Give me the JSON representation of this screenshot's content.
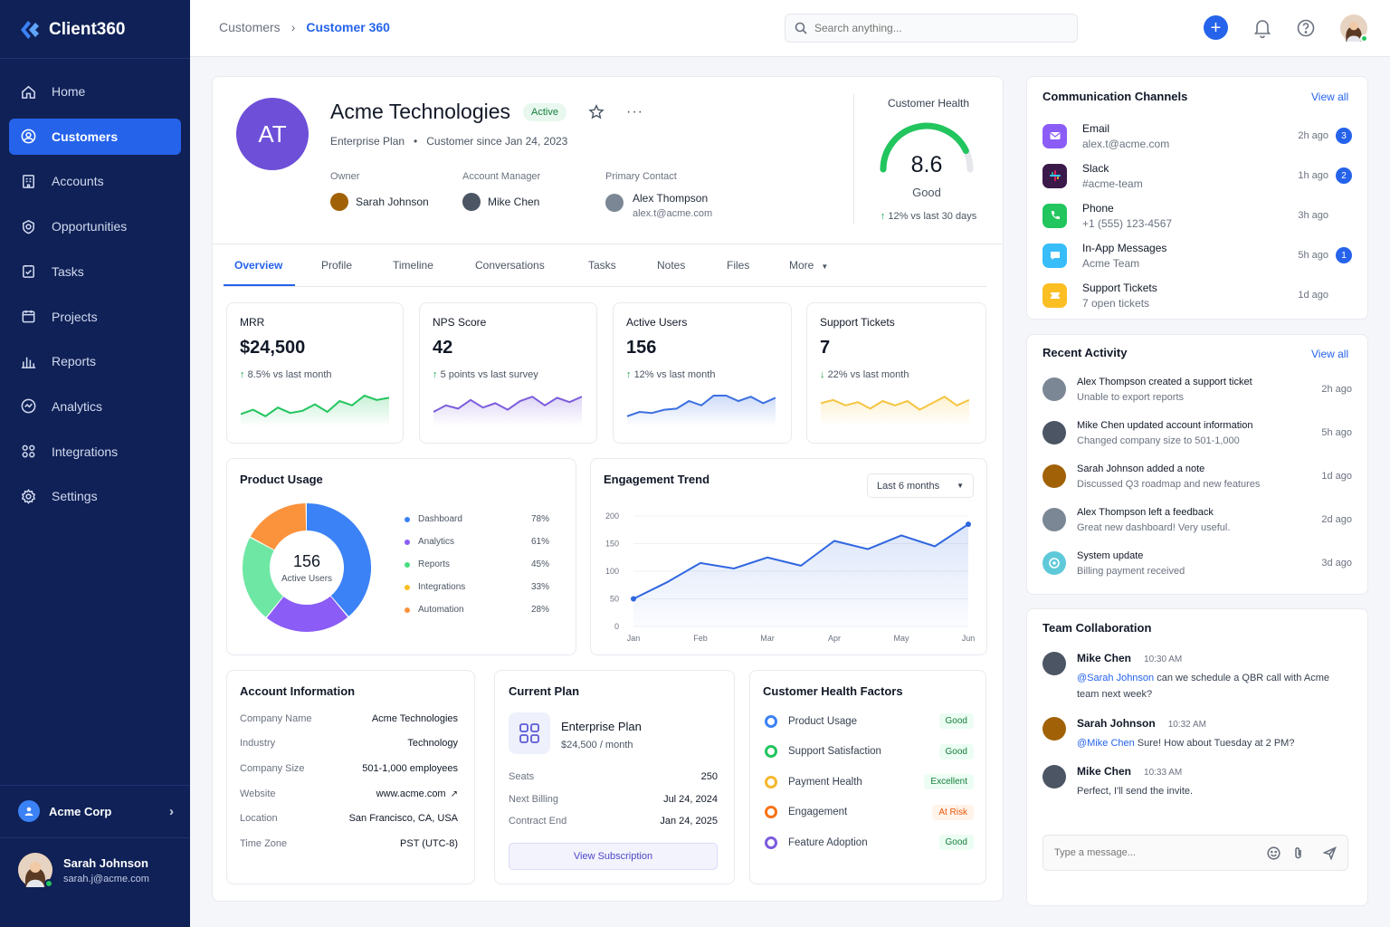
{
  "app": {
    "name": "Client360"
  },
  "sidebar": {
    "items": [
      {
        "label": "Home",
        "icon": "home-icon"
      },
      {
        "label": "Customers",
        "icon": "users-icon",
        "active": true
      },
      {
        "label": "Accounts",
        "icon": "building-icon"
      },
      {
        "label": "Opportunities",
        "icon": "target-icon"
      },
      {
        "label": "Tasks",
        "icon": "checklist-icon"
      },
      {
        "label": "Projects",
        "icon": "calendar-icon"
      },
      {
        "label": "Reports",
        "icon": "bar-chart-icon"
      },
      {
        "label": "Analytics",
        "icon": "analytics-icon"
      },
      {
        "label": "Integrations",
        "icon": "grid-icon"
      },
      {
        "label": "Settings",
        "icon": "gear-icon"
      }
    ],
    "org": "Acme Corp",
    "user": {
      "name": "Sarah Johnson",
      "email": "sarah.j@acme.com"
    }
  },
  "topbar": {
    "breadcrumb": [
      "Customers",
      "Customer 360"
    ],
    "search_placeholder": "Search anything..."
  },
  "customer": {
    "initials": "AT",
    "name": "Acme Technologies",
    "status": "Active",
    "plan": "Enterprise Plan",
    "since": "Customer since Jan 24, 2023",
    "owner_label": "Owner",
    "owner": "Sarah Johnson",
    "manager_label": "Account Manager",
    "manager": "Mike Chen",
    "contact_label": "Primary Contact",
    "contact": "Alex Thompson",
    "contact_email": "alex.t@acme.com"
  },
  "health": {
    "title": "Customer Health",
    "score": "8.6",
    "score_value": 8.6,
    "score_max": 10,
    "label": "Good",
    "change": "12% vs last 30 days"
  },
  "tabs": [
    "Overview",
    "Profile",
    "Timeline",
    "Conversations",
    "Tasks",
    "Notes",
    "Files",
    "More"
  ],
  "metrics": [
    {
      "label": "MRR",
      "value": "$24,500",
      "change": "8.5% vs last month",
      "dir": "up",
      "color": "#22c55e",
      "spark": [
        18,
        22,
        16,
        24,
        19,
        21,
        27,
        20,
        30,
        26,
        35,
        31,
        33
      ]
    },
    {
      "label": "NPS Score",
      "value": "42",
      "change": "5 points vs last survey",
      "dir": "up",
      "color": "#7c5cdb",
      "spark": [
        20,
        26,
        23,
        31,
        24,
        28,
        22,
        30,
        34,
        26,
        33,
        29,
        34
      ]
    },
    {
      "label": "Active Users",
      "value": "156",
      "change": "12% vs last month",
      "dir": "up",
      "color": "#3b6fe0",
      "spark": [
        16,
        20,
        19,
        22,
        23,
        30,
        26,
        35,
        35,
        30,
        34,
        28,
        33
      ]
    },
    {
      "label": "Support Tickets",
      "value": "7",
      "change": "22% vs last month",
      "dir": "down",
      "color": "#f5c542",
      "spark": [
        28,
        31,
        26,
        29,
        23,
        30,
        26,
        30,
        22,
        28,
        34,
        26,
        31
      ]
    }
  ],
  "product_usage": {
    "title": "Product Usage",
    "center_value": "156",
    "center_label": "Active Users",
    "items": [
      {
        "label": "Dashboard",
        "pct": "78%",
        "color": "#3b82f6"
      },
      {
        "label": "Analytics",
        "pct": "61%",
        "color": "#8b5cf6"
      },
      {
        "label": "Reports",
        "pct": "45%",
        "color": "#4ade80"
      },
      {
        "label": "Integrations",
        "pct": "33%",
        "color": "#fbbf24"
      },
      {
        "label": "Automation",
        "pct": "28%",
        "color": "#fb923c"
      }
    ],
    "donut_shares": [
      {
        "color": "#3b82f6",
        "share": 0.39
      },
      {
        "color": "#8b5cf6",
        "share": 0.22
      },
      {
        "color": "#6ee7a4",
        "share": 0.22
      },
      {
        "color": "#fb923c",
        "share": 0.17
      }
    ]
  },
  "engagement": {
    "title": "Engagement Trend",
    "range": "Last 6 months",
    "chart_data": {
      "type": "line",
      "x": [
        0,
        0.5,
        1,
        1.5,
        2,
        2.5,
        3,
        3.5,
        4,
        4.5,
        5
      ],
      "xticks": [
        "Jan",
        "Feb",
        "Mar",
        "Apr",
        "May",
        "Jun"
      ],
      "y": [
        50,
        80,
        115,
        105,
        125,
        110,
        155,
        140,
        165,
        145,
        185
      ],
      "yticks": [
        "200",
        "150",
        "100",
        "50",
        "0"
      ],
      "ylim": [
        0,
        200
      ]
    }
  },
  "account_info": {
    "title": "Account Information",
    "rows": [
      {
        "k": "Company Name",
        "v": "Acme Technologies"
      },
      {
        "k": "Industry",
        "v": "Technology"
      },
      {
        "k": "Company Size",
        "v": "501-1,000 employees"
      },
      {
        "k": "Website",
        "v": "www.acme.com",
        "link": true
      },
      {
        "k": "Location",
        "v": "San Francisco, CA, USA"
      },
      {
        "k": "Time Zone",
        "v": "PST (UTC-8)"
      }
    ]
  },
  "current_plan": {
    "title": "Current Plan",
    "name": "Enterprise Plan",
    "price": "$24,500 / month",
    "rows": [
      {
        "k": "Seats",
        "v": "250"
      },
      {
        "k": "Next Billing",
        "v": "Jul 24, 2024"
      },
      {
        "k": "Contract End",
        "v": "Jan 24, 2025"
      }
    ],
    "button": "View Subscription"
  },
  "health_factors": {
    "title": "Customer Health Factors",
    "rows": [
      {
        "label": "Product Usage",
        "tag": "Good",
        "icolor": "#3b82f6",
        "tcolor": "#15803d",
        "tbg": "#ecfdf3"
      },
      {
        "label": "Support Satisfaction",
        "tag": "Good",
        "icolor": "#22c55e",
        "tcolor": "#15803d",
        "tbg": "#ecfdf3"
      },
      {
        "label": "Payment Health",
        "tag": "Excellent",
        "icolor": "#f5b82e",
        "tcolor": "#15803d",
        "tbg": "#ecfdf3"
      },
      {
        "label": "Engagement",
        "tag": "At Risk",
        "icolor": "#f97316",
        "tcolor": "#ea580c",
        "tbg": "#fff3ea"
      },
      {
        "label": "Feature Adoption",
        "tag": "Good",
        "icolor": "#7c5cdb",
        "tcolor": "#15803d",
        "tbg": "#ecfdf3"
      }
    ]
  },
  "channels": {
    "title": "Communication Channels",
    "view_all": "View all",
    "rows": [
      {
        "t": "Email",
        "s": "alex.t@acme.com",
        "time": "2h ago",
        "count": "3",
        "bg": "#8b5cf6",
        "icon": "mail-icon"
      },
      {
        "t": "Slack",
        "s": "#acme-team",
        "time": "1h ago",
        "count": "2",
        "bg": "#3b1a4a",
        "icon": "slack-icon"
      },
      {
        "t": "Phone",
        "s": "+1 (555) 123-4567",
        "time": "3h ago",
        "count": "",
        "bg": "#22c55e",
        "icon": "phone-icon"
      },
      {
        "t": "In-App Messages",
        "s": "Acme Team",
        "time": "5h ago",
        "count": "1",
        "bg": "#38bdf8",
        "icon": "chat-icon"
      },
      {
        "t": "Support Tickets",
        "s": "7 open tickets",
        "time": "1d ago",
        "count": "",
        "bg": "#fbbf24",
        "icon": "ticket-icon"
      }
    ]
  },
  "activity": {
    "title": "Recent Activity",
    "view_all": "View all",
    "rows": [
      {
        "t": "Alex Thompson created a support ticket",
        "s": "Unable to export reports",
        "time": "2h ago",
        "av": "#7b8794"
      },
      {
        "t": "Mike Chen updated account information",
        "s": "Changed company size to 501-1,000",
        "time": "5h ago",
        "av": "#4b5563"
      },
      {
        "t": "Sarah Johnson added a note",
        "s": "Discussed Q3 roadmap and new features",
        "time": "1d ago",
        "av": "#a16207"
      },
      {
        "t": "Alex Thompson left a feedback",
        "s": "Great new dashboard! Very useful.",
        "time": "2d ago",
        "av": "#7b8794"
      },
      {
        "t": "System update",
        "s": "Billing payment received",
        "time": "3d ago",
        "av": "#5ec9d9",
        "system": true
      }
    ]
  },
  "team": {
    "title": "Team Collaboration",
    "messages": [
      {
        "name": "Mike Chen",
        "time": "10:30 AM",
        "mention": "@Sarah Johnson",
        "text": " can we schedule a QBR call with Acme team next week?",
        "av": "#4b5563"
      },
      {
        "name": "Sarah Johnson",
        "time": "10:32 AM",
        "mention": "@Mike Chen",
        "text": " Sure! How about Tuesday at 2 PM?",
        "av": "#a16207"
      },
      {
        "name": "Mike Chen",
        "time": "10:33 AM",
        "mention": "",
        "text": "Perfect, I'll send the invite.",
        "av": "#4b5563"
      }
    ],
    "input_placeholder": "Type a message..."
  }
}
